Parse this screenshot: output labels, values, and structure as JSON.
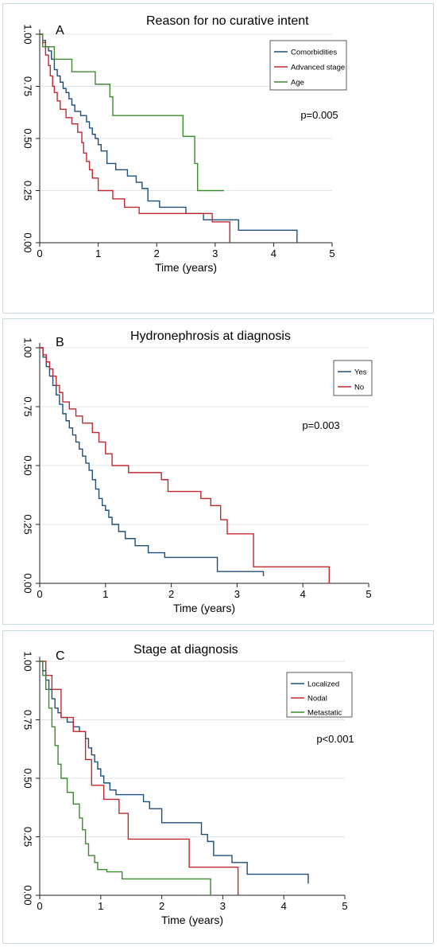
{
  "chart_data": [
    {
      "type": "line",
      "panel_label": "A",
      "title": "Reason for no curative intent",
      "xlabel": "Time (years)",
      "ylabel": "",
      "xlim": [
        0,
        5
      ],
      "ylim": [
        0,
        1
      ],
      "xticks": [
        "0",
        "1",
        "2",
        "3",
        "4",
        "5"
      ],
      "yticks": [
        "0.00",
        "0.25",
        "0.50",
        "0.75",
        "1.00"
      ],
      "grid": true,
      "legend_position": "top-right",
      "annotation": "p=0.005",
      "series": [
        {
          "name": "Comorbidities",
          "color": "#1f4e79",
          "x": [
            0,
            0.05,
            0.1,
            0.15,
            0.2,
            0.25,
            0.3,
            0.35,
            0.4,
            0.45,
            0.5,
            0.55,
            0.6,
            0.7,
            0.8,
            0.85,
            0.9,
            0.95,
            1.0,
            1.05,
            1.15,
            1.3,
            1.5,
            1.65,
            1.75,
            1.85,
            2.05,
            2.5,
            2.8,
            3.4,
            4.4
          ],
          "y": [
            1.0,
            0.97,
            0.94,
            0.92,
            0.88,
            0.83,
            0.8,
            0.77,
            0.74,
            0.72,
            0.69,
            0.66,
            0.63,
            0.61,
            0.58,
            0.55,
            0.52,
            0.5,
            0.47,
            0.44,
            0.38,
            0.35,
            0.32,
            0.29,
            0.26,
            0.2,
            0.17,
            0.14,
            0.11,
            0.06,
            0.0
          ]
        },
        {
          "name": "Advanced stage",
          "color": "#c0282e",
          "x": [
            0,
            0.05,
            0.1,
            0.15,
            0.18,
            0.22,
            0.25,
            0.3,
            0.35,
            0.45,
            0.55,
            0.65,
            0.72,
            0.75,
            0.8,
            0.85,
            0.9,
            1.0,
            1.25,
            1.45,
            1.7,
            2.5,
            2.95,
            3.25
          ],
          "y": [
            1.0,
            0.96,
            0.9,
            0.85,
            0.8,
            0.75,
            0.72,
            0.68,
            0.64,
            0.6,
            0.57,
            0.53,
            0.48,
            0.43,
            0.39,
            0.35,
            0.31,
            0.25,
            0.21,
            0.17,
            0.14,
            0.14,
            0.1,
            0.0
          ]
        },
        {
          "name": "Age",
          "color": "#3c8a2e",
          "x": [
            0,
            0.05,
            0.25,
            0.55,
            0.95,
            1.2,
            1.25,
            2.45,
            2.65,
            2.7,
            3.15
          ],
          "y": [
            1.0,
            0.94,
            0.88,
            0.82,
            0.76,
            0.7,
            0.61,
            0.51,
            0.38,
            0.25,
            0.25
          ]
        }
      ]
    },
    {
      "type": "line",
      "panel_label": "B",
      "title": "Hydronephrosis at diagnosis",
      "xlabel": "Time (years)",
      "ylabel": "",
      "xlim": [
        0,
        5
      ],
      "ylim": [
        0,
        1
      ],
      "xticks": [
        "0",
        "1",
        "2",
        "3",
        "4",
        "5"
      ],
      "yticks": [
        "0.00",
        "0.25",
        "0.50",
        "0.75",
        "1.00"
      ],
      "grid": true,
      "legend_position": "top-right",
      "annotation": "p=0.003",
      "series": [
        {
          "name": "Yes",
          "color": "#1f4e79",
          "x": [
            0,
            0.05,
            0.1,
            0.15,
            0.2,
            0.25,
            0.3,
            0.35,
            0.4,
            0.45,
            0.5,
            0.55,
            0.6,
            0.65,
            0.7,
            0.75,
            0.8,
            0.85,
            0.9,
            0.95,
            1.0,
            1.05,
            1.1,
            1.2,
            1.3,
            1.45,
            1.65,
            1.9,
            2.2,
            2.7,
            3.4
          ],
          "y": [
            1.0,
            0.96,
            0.92,
            0.88,
            0.84,
            0.8,
            0.76,
            0.72,
            0.69,
            0.66,
            0.63,
            0.6,
            0.57,
            0.54,
            0.51,
            0.48,
            0.44,
            0.4,
            0.36,
            0.33,
            0.31,
            0.28,
            0.25,
            0.22,
            0.19,
            0.16,
            0.13,
            0.11,
            0.11,
            0.05,
            0.03
          ]
        },
        {
          "name": "No",
          "color": "#c0282e",
          "x": [
            0,
            0.05,
            0.1,
            0.15,
            0.2,
            0.25,
            0.3,
            0.35,
            0.45,
            0.55,
            0.65,
            0.8,
            0.9,
            1.0,
            1.1,
            1.35,
            1.85,
            1.95,
            2.45,
            2.6,
            2.75,
            2.85,
            3.25,
            3.3,
            4.4
          ],
          "y": [
            1.0,
            0.97,
            0.94,
            0.91,
            0.88,
            0.84,
            0.81,
            0.77,
            0.74,
            0.71,
            0.68,
            0.64,
            0.6,
            0.55,
            0.5,
            0.47,
            0.44,
            0.39,
            0.36,
            0.33,
            0.27,
            0.21,
            0.07,
            0.07,
            0.0
          ]
        }
      ]
    },
    {
      "type": "line",
      "panel_label": "C",
      "title": "Stage at diagnosis",
      "xlabel": "Time (years)",
      "ylabel": "",
      "xlim": [
        0,
        5
      ],
      "ylim": [
        0,
        1
      ],
      "xticks": [
        "0",
        "1",
        "2",
        "3",
        "4",
        "5"
      ],
      "yticks": [
        "0.00",
        "0.25",
        "0.50",
        "0.75",
        "1.00"
      ],
      "grid": true,
      "legend_position": "top-right",
      "annotation": "p<0.001",
      "series": [
        {
          "name": "Localized",
          "color": "#1f4e79",
          "x": [
            0,
            0.05,
            0.1,
            0.15,
            0.2,
            0.25,
            0.3,
            0.35,
            0.45,
            0.55,
            0.65,
            0.75,
            0.8,
            0.85,
            0.9,
            0.95,
            1.0,
            1.05,
            1.15,
            1.25,
            1.4,
            1.7,
            1.8,
            2.0,
            2.4,
            2.65,
            2.75,
            2.85,
            3.15,
            3.4,
            4.4
          ],
          "y": [
            1.0,
            0.96,
            0.92,
            0.88,
            0.84,
            0.8,
            0.78,
            0.76,
            0.74,
            0.72,
            0.7,
            0.67,
            0.63,
            0.6,
            0.57,
            0.54,
            0.51,
            0.48,
            0.45,
            0.43,
            0.43,
            0.4,
            0.37,
            0.31,
            0.31,
            0.26,
            0.23,
            0.17,
            0.14,
            0.09,
            0.05
          ]
        },
        {
          "name": "Nodal",
          "color": "#c0282e",
          "x": [
            0,
            0.1,
            0.2,
            0.35,
            0.55,
            0.65,
            0.75,
            0.85,
            1.05,
            1.3,
            1.45,
            2.45,
            3.25
          ],
          "y": [
            1.0,
            0.94,
            0.88,
            0.76,
            0.7,
            0.7,
            0.58,
            0.47,
            0.41,
            0.35,
            0.24,
            0.12,
            0.0
          ]
        },
        {
          "name": "Metastatic",
          "color": "#3c8a2e",
          "x": [
            0,
            0.05,
            0.1,
            0.15,
            0.2,
            0.25,
            0.3,
            0.35,
            0.45,
            0.55,
            0.65,
            0.7,
            0.75,
            0.8,
            0.9,
            0.95,
            1.0,
            1.1,
            1.35,
            1.7,
            2.8
          ],
          "y": [
            1.0,
            0.94,
            0.88,
            0.8,
            0.72,
            0.64,
            0.56,
            0.5,
            0.44,
            0.39,
            0.33,
            0.28,
            0.22,
            0.17,
            0.14,
            0.11,
            0.11,
            0.1,
            0.07,
            0.07,
            0.0
          ]
        }
      ]
    }
  ]
}
